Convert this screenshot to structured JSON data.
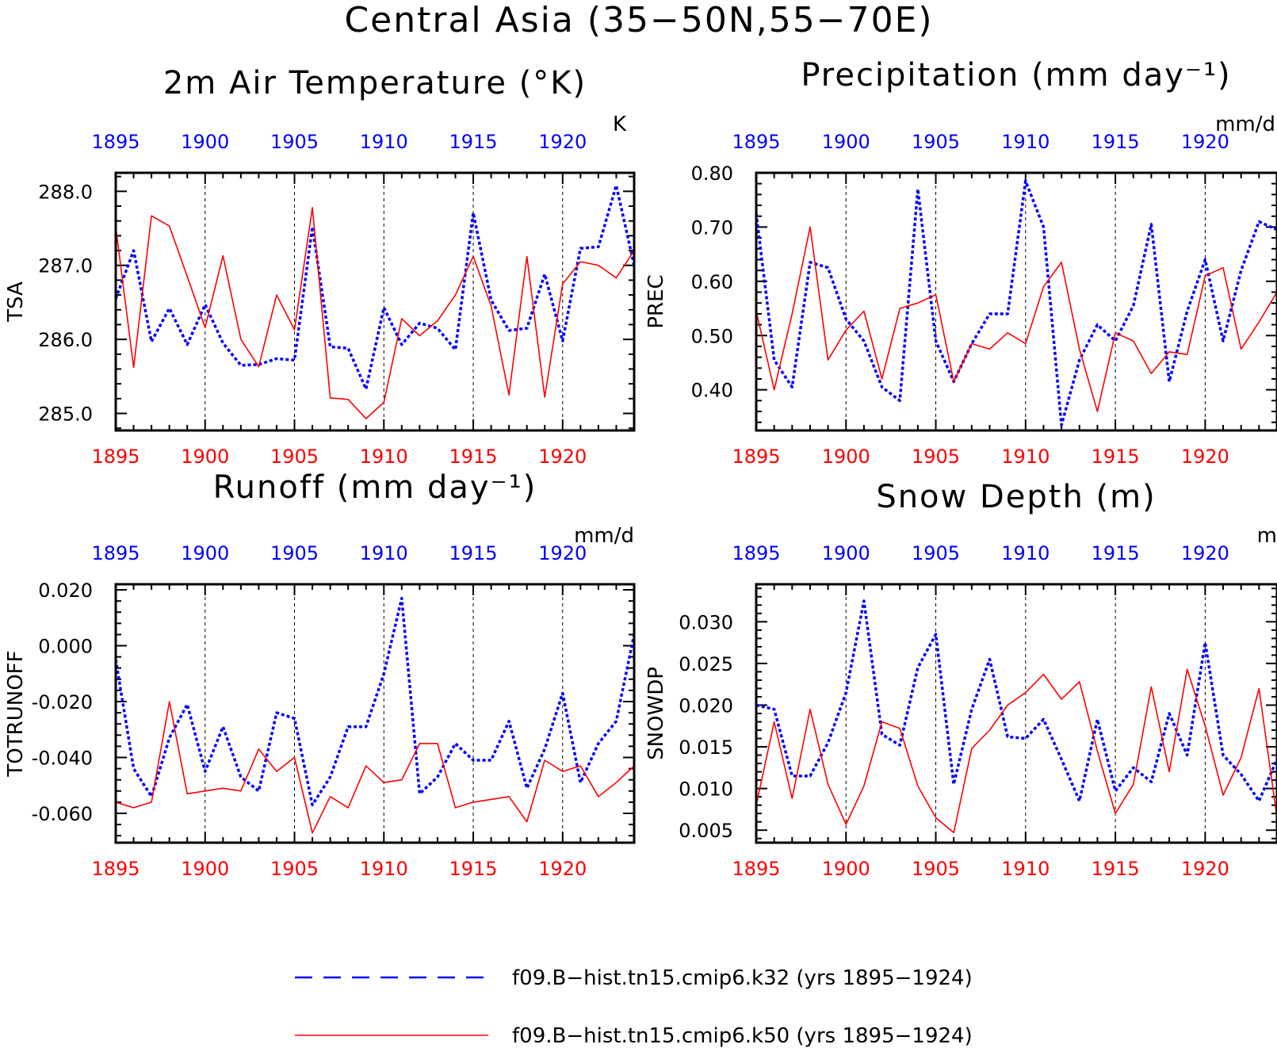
{
  "title": "Central Asia (35−50N,55−70E)",
  "colors": {
    "series_a": "#0000ff",
    "series_b": "#ff0000",
    "axis": "#000000",
    "grid": "#000000"
  },
  "legend": [
    {
      "label": "f09.B−hist.tn15.cmip6.k32 (yrs 1895−1924)",
      "color": "#0000ff",
      "style": "dashed"
    },
    {
      "label": "f09.B−hist.tn15.cmip6.k50 (yrs 1895−1924)",
      "color": "#ff0000",
      "style": "solid"
    }
  ],
  "chart_data": [
    {
      "type": "line",
      "title": "2m Air Temperature (°K)",
      "ylabel": "TSA",
      "units": "K",
      "xlim": [
        1895,
        1924
      ],
      "ylim": [
        284.77,
        288.25
      ],
      "yticks": [
        "285.0",
        "286.0",
        "287.0",
        "288.0"
      ],
      "xticks": [
        "1895",
        "1900",
        "1905",
        "1910",
        "1915",
        "1920"
      ],
      "x": [
        1895,
        1896,
        1897,
        1898,
        1899,
        1900,
        1901,
        1902,
        1903,
        1904,
        1905,
        1906,
        1907,
        1908,
        1909,
        1910,
        1911,
        1912,
        1913,
        1914,
        1915,
        1916,
        1917,
        1918,
        1919,
        1920,
        1921,
        1922,
        1923,
        1924
      ],
      "series": [
        {
          "values": [
            286.55,
            287.2,
            285.97,
            286.42,
            285.93,
            286.47,
            285.95,
            285.65,
            285.66,
            285.74,
            285.72,
            287.52,
            285.9,
            285.88,
            285.33,
            286.43,
            285.93,
            286.22,
            286.15,
            285.86,
            287.71,
            286.53,
            286.12,
            286.15,
            286.88,
            285.98,
            287.23,
            287.25,
            288.08,
            287.0
          ]
        },
        {
          "values": [
            287.52,
            285.62,
            287.67,
            287.53,
            286.85,
            286.16,
            287.13,
            286.0,
            285.63,
            286.6,
            286.13,
            287.78,
            285.21,
            285.19,
            284.93,
            285.15,
            286.28,
            286.05,
            286.25,
            286.6,
            287.12,
            286.45,
            285.25,
            287.12,
            285.22,
            286.75,
            287.05,
            287.0,
            286.83,
            287.2
          ]
        }
      ]
    },
    {
      "type": "line",
      "title": "Precipitation (mm day⁻¹)",
      "ylabel": "PREC",
      "units": "mm/d",
      "xlim": [
        1895,
        1924
      ],
      "ylim": [
        0.325,
        0.8
      ],
      "yticks": [
        "0.40",
        "0.50",
        "0.60",
        "0.70",
        "0.80"
      ],
      "xticks": [
        "1895",
        "1900",
        "1905",
        "1910",
        "1915",
        "1920"
      ],
      "x": [
        1895,
        1896,
        1897,
        1898,
        1899,
        1900,
        1901,
        1902,
        1903,
        1904,
        1905,
        1906,
        1907,
        1908,
        1909,
        1910,
        1911,
        1912,
        1913,
        1914,
        1915,
        1916,
        1917,
        1918,
        1919,
        1920,
        1921,
        1922,
        1923,
        1924
      ],
      "series": [
        {
          "values": [
            0.725,
            0.455,
            0.405,
            0.635,
            0.625,
            0.53,
            0.49,
            0.405,
            0.38,
            0.77,
            0.49,
            0.415,
            0.485,
            0.54,
            0.54,
            0.785,
            0.7,
            0.335,
            0.455,
            0.52,
            0.49,
            0.555,
            0.705,
            0.415,
            0.545,
            0.64,
            0.49,
            0.62,
            0.71,
            0.695
          ]
        },
        {
          "values": [
            0.545,
            0.4,
            0.54,
            0.7,
            0.455,
            0.51,
            0.545,
            0.42,
            0.55,
            0.56,
            0.575,
            0.415,
            0.485,
            0.475,
            0.505,
            0.485,
            0.59,
            0.635,
            0.475,
            0.36,
            0.505,
            0.49,
            0.43,
            0.47,
            0.465,
            0.61,
            0.625,
            0.475,
            0.525,
            0.58
          ]
        }
      ]
    },
    {
      "type": "line",
      "title": "Runoff (mm day⁻¹)",
      "ylabel": "TOTRUNOFF",
      "units": "mm/d",
      "xlim": [
        1895,
        1924
      ],
      "ylim": [
        -0.0705,
        0.022
      ],
      "yticks": [
        "-0.060",
        "-0.040",
        "-0.020",
        "0.000",
        "0.020"
      ],
      "xticks": [
        "1895",
        "1900",
        "1905",
        "1910",
        "1915",
        "1920"
      ],
      "x": [
        1895,
        1896,
        1897,
        1898,
        1899,
        1900,
        1901,
        1902,
        1903,
        1904,
        1905,
        1906,
        1907,
        1908,
        1909,
        1910,
        1911,
        1912,
        1913,
        1914,
        1915,
        1916,
        1917,
        1918,
        1919,
        1920,
        1921,
        1922,
        1923,
        1924
      ],
      "series": [
        {
          "values": [
            -0.005,
            -0.044,
            -0.054,
            -0.033,
            -0.021,
            -0.045,
            -0.029,
            -0.047,
            -0.052,
            -0.024,
            -0.026,
            -0.057,
            -0.047,
            -0.029,
            -0.029,
            -0.01,
            0.017,
            -0.053,
            -0.047,
            -0.035,
            -0.041,
            -0.041,
            -0.027,
            -0.051,
            -0.037,
            -0.017,
            -0.049,
            -0.035,
            -0.027,
            0.004
          ]
        },
        {
          "values": [
            -0.056,
            -0.058,
            -0.056,
            -0.02,
            -0.053,
            -0.052,
            -0.051,
            -0.052,
            -0.037,
            -0.045,
            -0.04,
            -0.067,
            -0.054,
            -0.058,
            -0.043,
            -0.049,
            -0.048,
            -0.035,
            -0.035,
            -0.058,
            -0.056,
            -0.055,
            -0.054,
            -0.063,
            -0.041,
            -0.045,
            -0.043,
            -0.054,
            -0.049,
            -0.043
          ]
        }
      ]
    },
    {
      "type": "line",
      "title": "Snow Depth (m)",
      "ylabel": "SNOWDP",
      "units": "m",
      "xlim": [
        1895,
        1924
      ],
      "ylim": [
        0.0035,
        0.0345
      ],
      "yticks": [
        "0.005",
        "0.010",
        "0.015",
        "0.020",
        "0.025",
        "0.030"
      ],
      "xticks": [
        "1895",
        "1900",
        "1905",
        "1910",
        "1915",
        "1920"
      ],
      "x": [
        1895,
        1896,
        1897,
        1898,
        1899,
        1900,
        1901,
        1902,
        1903,
        1904,
        1905,
        1906,
        1907,
        1908,
        1909,
        1910,
        1911,
        1912,
        1913,
        1914,
        1915,
        1916,
        1917,
        1918,
        1919,
        1920,
        1921,
        1922,
        1923,
        1924
      ],
      "series": [
        {
          "values": [
            0.02,
            0.0195,
            0.0115,
            0.0115,
            0.0155,
            0.0215,
            0.0325,
            0.0165,
            0.0152,
            0.0245,
            0.0285,
            0.0105,
            0.0195,
            0.0255,
            0.0162,
            0.016,
            0.0183,
            0.0135,
            0.0085,
            0.0183,
            0.0097,
            0.0125,
            0.0108,
            0.019,
            0.014,
            0.0275,
            0.014,
            0.0117,
            0.0085,
            0.0135
          ]
        },
        {
          "values": [
            0.008,
            0.018,
            0.0088,
            0.0195,
            0.0105,
            0.0057,
            0.0103,
            0.018,
            0.0172,
            0.0103,
            0.0065,
            0.0047,
            0.0148,
            0.017,
            0.02,
            0.0215,
            0.0237,
            0.0207,
            0.0228,
            0.0145,
            0.007,
            0.0105,
            0.0222,
            0.012,
            0.0243,
            0.0175,
            0.0092,
            0.0137,
            0.022,
            0.0065
          ]
        }
      ]
    }
  ]
}
